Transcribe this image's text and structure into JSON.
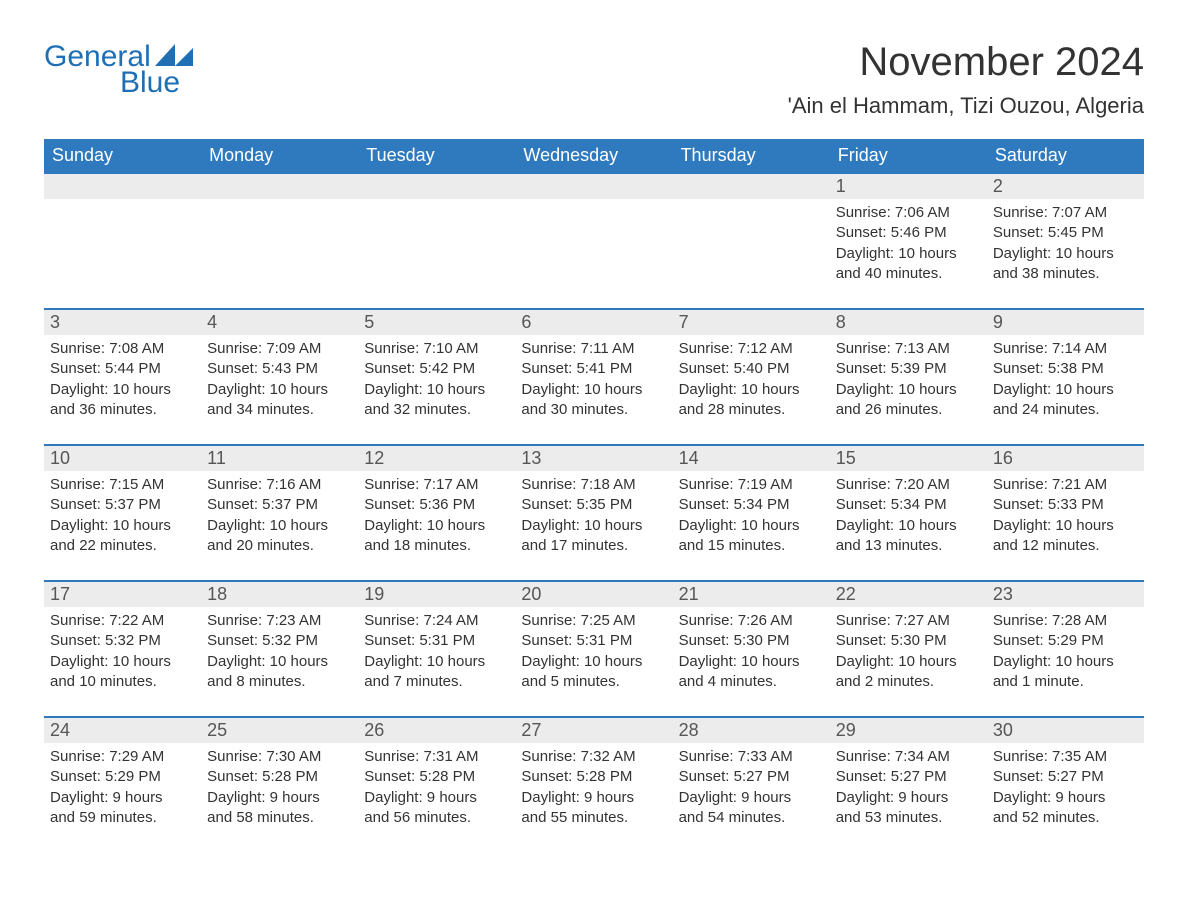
{
  "logo": {
    "word1": "General",
    "word2": "Blue",
    "brand_color": "#1f6fb5"
  },
  "title": "November 2024",
  "location": "'Ain el Hammam, Tizi Ouzou, Algeria",
  "colors": {
    "header_bg": "#2f79bf",
    "header_text": "#ffffff",
    "daynum_bg": "#ececec",
    "daynum_text": "#565656",
    "body_text": "#333333",
    "row_border": "#2f79bf",
    "page_bg": "#ffffff"
  },
  "day_names": [
    "Sunday",
    "Monday",
    "Tuesday",
    "Wednesday",
    "Thursday",
    "Friday",
    "Saturday"
  ],
  "weeks": [
    [
      {
        "empty": true
      },
      {
        "empty": true
      },
      {
        "empty": true
      },
      {
        "empty": true
      },
      {
        "empty": true
      },
      {
        "day": "1",
        "sunrise": "Sunrise: 7:06 AM",
        "sunset": "Sunset: 5:46 PM",
        "daylight1": "Daylight: 10 hours",
        "daylight2": "and 40 minutes."
      },
      {
        "day": "2",
        "sunrise": "Sunrise: 7:07 AM",
        "sunset": "Sunset: 5:45 PM",
        "daylight1": "Daylight: 10 hours",
        "daylight2": "and 38 minutes."
      }
    ],
    [
      {
        "day": "3",
        "sunrise": "Sunrise: 7:08 AM",
        "sunset": "Sunset: 5:44 PM",
        "daylight1": "Daylight: 10 hours",
        "daylight2": "and 36 minutes."
      },
      {
        "day": "4",
        "sunrise": "Sunrise: 7:09 AM",
        "sunset": "Sunset: 5:43 PM",
        "daylight1": "Daylight: 10 hours",
        "daylight2": "and 34 minutes."
      },
      {
        "day": "5",
        "sunrise": "Sunrise: 7:10 AM",
        "sunset": "Sunset: 5:42 PM",
        "daylight1": "Daylight: 10 hours",
        "daylight2": "and 32 minutes."
      },
      {
        "day": "6",
        "sunrise": "Sunrise: 7:11 AM",
        "sunset": "Sunset: 5:41 PM",
        "daylight1": "Daylight: 10 hours",
        "daylight2": "and 30 minutes."
      },
      {
        "day": "7",
        "sunrise": "Sunrise: 7:12 AM",
        "sunset": "Sunset: 5:40 PM",
        "daylight1": "Daylight: 10 hours",
        "daylight2": "and 28 minutes."
      },
      {
        "day": "8",
        "sunrise": "Sunrise: 7:13 AM",
        "sunset": "Sunset: 5:39 PM",
        "daylight1": "Daylight: 10 hours",
        "daylight2": "and 26 minutes."
      },
      {
        "day": "9",
        "sunrise": "Sunrise: 7:14 AM",
        "sunset": "Sunset: 5:38 PM",
        "daylight1": "Daylight: 10 hours",
        "daylight2": "and 24 minutes."
      }
    ],
    [
      {
        "day": "10",
        "sunrise": "Sunrise: 7:15 AM",
        "sunset": "Sunset: 5:37 PM",
        "daylight1": "Daylight: 10 hours",
        "daylight2": "and 22 minutes."
      },
      {
        "day": "11",
        "sunrise": "Sunrise: 7:16 AM",
        "sunset": "Sunset: 5:37 PM",
        "daylight1": "Daylight: 10 hours",
        "daylight2": "and 20 minutes."
      },
      {
        "day": "12",
        "sunrise": "Sunrise: 7:17 AM",
        "sunset": "Sunset: 5:36 PM",
        "daylight1": "Daylight: 10 hours",
        "daylight2": "and 18 minutes."
      },
      {
        "day": "13",
        "sunrise": "Sunrise: 7:18 AM",
        "sunset": "Sunset: 5:35 PM",
        "daylight1": "Daylight: 10 hours",
        "daylight2": "and 17 minutes."
      },
      {
        "day": "14",
        "sunrise": "Sunrise: 7:19 AM",
        "sunset": "Sunset: 5:34 PM",
        "daylight1": "Daylight: 10 hours",
        "daylight2": "and 15 minutes."
      },
      {
        "day": "15",
        "sunrise": "Sunrise: 7:20 AM",
        "sunset": "Sunset: 5:34 PM",
        "daylight1": "Daylight: 10 hours",
        "daylight2": "and 13 minutes."
      },
      {
        "day": "16",
        "sunrise": "Sunrise: 7:21 AM",
        "sunset": "Sunset: 5:33 PM",
        "daylight1": "Daylight: 10 hours",
        "daylight2": "and 12 minutes."
      }
    ],
    [
      {
        "day": "17",
        "sunrise": "Sunrise: 7:22 AM",
        "sunset": "Sunset: 5:32 PM",
        "daylight1": "Daylight: 10 hours",
        "daylight2": "and 10 minutes."
      },
      {
        "day": "18",
        "sunrise": "Sunrise: 7:23 AM",
        "sunset": "Sunset: 5:32 PM",
        "daylight1": "Daylight: 10 hours",
        "daylight2": "and 8 minutes."
      },
      {
        "day": "19",
        "sunrise": "Sunrise: 7:24 AM",
        "sunset": "Sunset: 5:31 PM",
        "daylight1": "Daylight: 10 hours",
        "daylight2": "and 7 minutes."
      },
      {
        "day": "20",
        "sunrise": "Sunrise: 7:25 AM",
        "sunset": "Sunset: 5:31 PM",
        "daylight1": "Daylight: 10 hours",
        "daylight2": "and 5 minutes."
      },
      {
        "day": "21",
        "sunrise": "Sunrise: 7:26 AM",
        "sunset": "Sunset: 5:30 PM",
        "daylight1": "Daylight: 10 hours",
        "daylight2": "and 4 minutes."
      },
      {
        "day": "22",
        "sunrise": "Sunrise: 7:27 AM",
        "sunset": "Sunset: 5:30 PM",
        "daylight1": "Daylight: 10 hours",
        "daylight2": "and 2 minutes."
      },
      {
        "day": "23",
        "sunrise": "Sunrise: 7:28 AM",
        "sunset": "Sunset: 5:29 PM",
        "daylight1": "Daylight: 10 hours",
        "daylight2": "and 1 minute."
      }
    ],
    [
      {
        "day": "24",
        "sunrise": "Sunrise: 7:29 AM",
        "sunset": "Sunset: 5:29 PM",
        "daylight1": "Daylight: 9 hours",
        "daylight2": "and 59 minutes."
      },
      {
        "day": "25",
        "sunrise": "Sunrise: 7:30 AM",
        "sunset": "Sunset: 5:28 PM",
        "daylight1": "Daylight: 9 hours",
        "daylight2": "and 58 minutes."
      },
      {
        "day": "26",
        "sunrise": "Sunrise: 7:31 AM",
        "sunset": "Sunset: 5:28 PM",
        "daylight1": "Daylight: 9 hours",
        "daylight2": "and 56 minutes."
      },
      {
        "day": "27",
        "sunrise": "Sunrise: 7:32 AM",
        "sunset": "Sunset: 5:28 PM",
        "daylight1": "Daylight: 9 hours",
        "daylight2": "and 55 minutes."
      },
      {
        "day": "28",
        "sunrise": "Sunrise: 7:33 AM",
        "sunset": "Sunset: 5:27 PM",
        "daylight1": "Daylight: 9 hours",
        "daylight2": "and 54 minutes."
      },
      {
        "day": "29",
        "sunrise": "Sunrise: 7:34 AM",
        "sunset": "Sunset: 5:27 PM",
        "daylight1": "Daylight: 9 hours",
        "daylight2": "and 53 minutes."
      },
      {
        "day": "30",
        "sunrise": "Sunrise: 7:35 AM",
        "sunset": "Sunset: 5:27 PM",
        "daylight1": "Daylight: 9 hours",
        "daylight2": "and 52 minutes."
      }
    ]
  ]
}
